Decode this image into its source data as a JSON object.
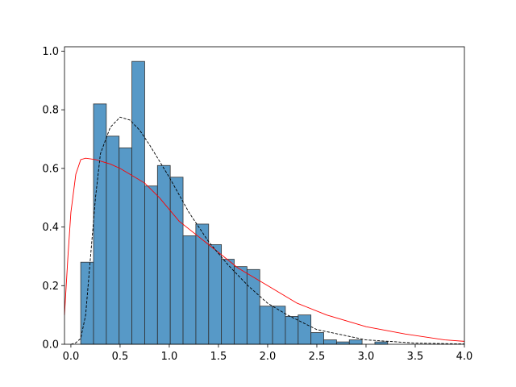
{
  "chart_data": {
    "type": "histogram",
    "bins": [
      0.1,
      0.23,
      0.36,
      0.49,
      0.62,
      0.75,
      0.88,
      1.01,
      1.14,
      1.27,
      1.4,
      1.53,
      1.66,
      1.79,
      1.92,
      2.05,
      2.18,
      2.31,
      2.44,
      2.57,
      2.7,
      2.83,
      2.96,
      3.09,
      3.22,
      3.35,
      3.48,
      3.61,
      3.74,
      3.87,
      4.0
    ],
    "values": [
      0.28,
      0.82,
      0.71,
      0.67,
      0.965,
      0.54,
      0.61,
      0.57,
      0.37,
      0.41,
      0.34,
      0.29,
      0.265,
      0.255,
      0.13,
      0.13,
      0.095,
      0.1,
      0.04,
      0.015,
      0.008,
      0.015,
      0,
      0.008,
      0,
      0,
      0,
      0,
      0,
      0
    ],
    "color": "#1f77b4",
    "edgecolor": "#333333",
    "lines": [
      {
        "color": "#ff0000",
        "dashed": false,
        "x": [
          -0.065,
          -0.03,
          0,
          0.05,
          0.1,
          0.15,
          0.25,
          0.4,
          0.5,
          0.6,
          0.75,
          0.9,
          1.1,
          1.4,
          1.7,
          2.0,
          2.3,
          2.6,
          3.0,
          3.4,
          3.8,
          4.0
        ],
        "y": [
          0.1,
          0.3,
          0.45,
          0.58,
          0.63,
          0.635,
          0.63,
          0.615,
          0.6,
          0.58,
          0.55,
          0.5,
          0.42,
          0.34,
          0.26,
          0.2,
          0.14,
          0.1,
          0.06,
          0.035,
          0.015,
          0.01
        ]
      },
      {
        "color": "#000000",
        "dashed": true,
        "x": [
          0,
          0.05,
          0.1,
          0.15,
          0.2,
          0.25,
          0.3,
          0.4,
          0.5,
          0.6,
          0.7,
          0.8,
          1.0,
          1.2,
          1.4,
          1.6,
          1.8,
          2.0,
          2.2,
          2.5,
          3.0,
          3.5,
          4.0
        ],
        "y": [
          0,
          0.005,
          0.02,
          0.1,
          0.3,
          0.5,
          0.65,
          0.74,
          0.775,
          0.765,
          0.73,
          0.68,
          0.57,
          0.45,
          0.35,
          0.27,
          0.2,
          0.14,
          0.1,
          0.05,
          0.015,
          0.004,
          0.001
        ]
      }
    ],
    "xlim": [
      -0.065,
      4.0
    ],
    "ylim": [
      0,
      1.015
    ],
    "xticks": [
      {
        "value": 0,
        "label": "0.0"
      },
      {
        "value": 0.5,
        "label": "0.5"
      },
      {
        "value": 1,
        "label": "1.0"
      },
      {
        "value": 1.5,
        "label": "1.5"
      },
      {
        "value": 2,
        "label": "2.0"
      },
      {
        "value": 2.5,
        "label": "2.5"
      },
      {
        "value": 3,
        "label": "3.0"
      },
      {
        "value": 3.5,
        "label": "3.5"
      },
      {
        "value": 4,
        "label": "4.0"
      }
    ],
    "yticks": [
      {
        "value": 0,
        "label": "0.0"
      },
      {
        "value": 0.2,
        "label": "0.2"
      },
      {
        "value": 0.4,
        "label": "0.4"
      },
      {
        "value": 0.6,
        "label": "0.6"
      },
      {
        "value": 0.8,
        "label": "0.8"
      },
      {
        "value": 1,
        "label": "1.0"
      }
    ]
  }
}
